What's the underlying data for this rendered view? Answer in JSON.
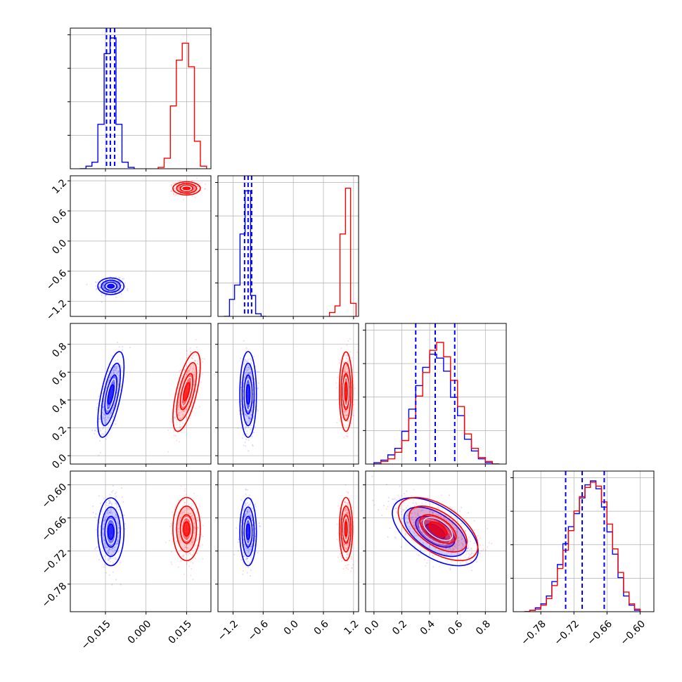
{
  "figure": {
    "type": "corner-plot",
    "colors": {
      "blue": "#0000ff",
      "red": "#ff0000",
      "grid": "#b0b0b0"
    }
  },
  "chart_data": {
    "type": "corner",
    "params": [
      {
        "range": [
          -0.028,
          0.024
        ],
        "ticks": [
          -0.015,
          0.0,
          0.015
        ],
        "tick_labels": [
          "−0.015",
          "0.000",
          "0.015"
        ]
      },
      {
        "range": [
          -1.5,
          1.3
        ],
        "ticks": [
          -1.2,
          -0.6,
          0.0,
          0.6,
          1.2
        ],
        "tick_labels": [
          "−1.2",
          "−0.6",
          "0.0",
          "0.6",
          "1.2"
        ]
      },
      {
        "range": [
          -0.06,
          0.95
        ],
        "ticks": [
          0.0,
          0.2,
          0.4,
          0.6,
          0.8
        ],
        "tick_labels": [
          "0.0",
          "0.2",
          "0.4",
          "0.6",
          "0.8"
        ]
      },
      {
        "range": [
          -0.83,
          -0.575
        ],
        "ticks": [
          -0.78,
          -0.72,
          -0.66,
          -0.6
        ],
        "tick_labels": [
          "−0.78",
          "−0.72",
          "−0.66",
          "−0.60"
        ]
      }
    ],
    "series": [
      {
        "color": "#0000ff",
        "means": [
          -0.013,
          -0.9,
          0.44,
          -0.685
        ],
        "sds": [
          0.0022,
          0.075,
          0.14,
          0.028
        ],
        "quantile_lines": [
          [
            -0.0146,
            -0.0132,
            -0.0116
          ],
          [
            -0.97,
            -0.9,
            -0.83
          ],
          [
            0.3,
            0.44,
            0.58
          ],
          [
            -0.735,
            -0.705,
            -0.665
          ]
        ]
      },
      {
        "color": "#ff0000",
        "means": [
          0.015,
          1.05,
          0.46,
          -0.68
        ],
        "sds": [
          0.0023,
          0.06,
          0.13,
          0.026
        ]
      }
    ],
    "correlations": {
      "0-2": 0.65,
      "2-3": -0.55
    },
    "hist_counts": [
      {
        "blue_edges": [
          -0.0245,
          -0.0222,
          -0.02,
          -0.0178,
          -0.0155,
          -0.0133,
          -0.0111,
          -0.0089,
          -0.0066,
          -0.0044
        ],
        "blue_counts": [
          0.0,
          0.02,
          0.05,
          0.34,
          0.88,
          1.0,
          0.34,
          0.05,
          0.01
        ],
        "red_edges": [
          0.0045,
          0.0067,
          0.009,
          0.0112,
          0.0134,
          0.0157,
          0.0179,
          0.0201,
          0.0224
        ],
        "red_counts": [
          0.01,
          0.08,
          0.48,
          0.83,
          0.96,
          0.78,
          0.21,
          0.02
        ]
      },
      {
        "blue_edges": [
          -1.38,
          -1.27,
          -1.17,
          -1.06,
          -0.96,
          -0.85,
          -0.75,
          -0.64,
          -0.54
        ],
        "blue_counts": [
          0.0,
          0.13,
          0.24,
          0.63,
          0.96,
          0.16,
          0.02,
          0.0
        ],
        "red_edges": [
          0.72,
          0.83,
          0.93,
          1.04,
          1.14,
          1.25
        ],
        "red_counts": [
          0.03,
          0.08,
          0.63,
          0.98,
          0.1
        ]
      },
      {
        "blue_edges": [
          0.0,
          0.05,
          0.1,
          0.15,
          0.2,
          0.25,
          0.3,
          0.35,
          0.4,
          0.45,
          0.5,
          0.55,
          0.6,
          0.65,
          0.7,
          0.75,
          0.8,
          0.85,
          0.9
        ],
        "blue_counts": [
          0.01,
          0.03,
          0.07,
          0.12,
          0.25,
          0.42,
          0.6,
          0.74,
          0.84,
          0.81,
          0.71,
          0.51,
          0.37,
          0.19,
          0.1,
          0.04,
          0.01,
          0.0
        ],
        "red_edges": [
          0.0,
          0.05,
          0.1,
          0.15,
          0.2,
          0.25,
          0.3,
          0.35,
          0.4,
          0.45,
          0.5,
          0.55,
          0.6,
          0.65,
          0.7,
          0.75,
          0.8,
          0.85,
          0.9
        ],
        "red_counts": [
          0.0,
          0.02,
          0.04,
          0.09,
          0.18,
          0.35,
          0.52,
          0.7,
          0.87,
          0.93,
          0.82,
          0.64,
          0.44,
          0.23,
          0.12,
          0.05,
          0.02,
          0.0
        ]
      },
      {
        "blue_edges": [
          -0.81,
          -0.8,
          -0.79,
          -0.78,
          -0.77,
          -0.76,
          -0.75,
          -0.74,
          -0.73,
          -0.72,
          -0.71,
          -0.7,
          -0.69,
          -0.68,
          -0.67,
          -0.66,
          -0.65,
          -0.64,
          -0.63,
          -0.62,
          -0.61,
          -0.6
        ],
        "blue_counts": [
          0.0,
          0.01,
          0.03,
          0.06,
          0.12,
          0.23,
          0.36,
          0.52,
          0.65,
          0.75,
          0.87,
          0.97,
          1.0,
          0.94,
          0.8,
          0.61,
          0.44,
          0.26,
          0.12,
          0.05,
          0.01
        ],
        "red_edges": [
          -0.81,
          -0.8,
          -0.79,
          -0.78,
          -0.77,
          -0.76,
          -0.75,
          -0.74,
          -0.73,
          -0.72,
          -0.71,
          -0.7,
          -0.69,
          -0.68,
          -0.67,
          -0.66,
          -0.65,
          -0.64,
          -0.63,
          -0.62,
          -0.61,
          -0.6
        ],
        "red_counts": [
          0.0,
          0.01,
          0.02,
          0.05,
          0.1,
          0.2,
          0.33,
          0.47,
          0.62,
          0.77,
          0.88,
          0.95,
          0.99,
          0.96,
          0.84,
          0.67,
          0.48,
          0.3,
          0.15,
          0.06,
          0.02
        ]
      }
    ],
    "grid": true,
    "legend": "none"
  }
}
